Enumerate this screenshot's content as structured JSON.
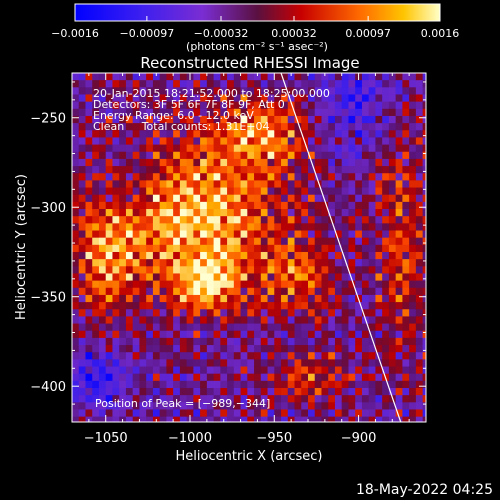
{
  "chart_data": {
    "type": "heatmap",
    "title": "Reconstructed RHESSI Image",
    "xlabel": "Heliocentric X (arcsec)",
    "ylabel": "Heliocentric Y (arcsec)",
    "xlim": [
      -1070,
      -860
    ],
    "ylim": [
      -420,
      -225
    ],
    "x_ticks": [
      "−1050",
      "−1000",
      "−950",
      "−900"
    ],
    "x_tick_values": [
      -1050,
      -1000,
      -950,
      -900
    ],
    "y_ticks": [
      "−250",
      "−300",
      "−350",
      "−400"
    ],
    "y_tick_values": [
      -250,
      -300,
      -350,
      -400
    ],
    "colorbar": {
      "unit": "(photons cm⁻² s⁻¹ asec⁻²)",
      "range": [
        -0.0016,
        0.0016
      ],
      "tick_labels": [
        "−0.0016",
        "−0.00097",
        "−0.00032",
        "0.00032",
        "0.00097",
        "0.0016"
      ],
      "tick_values": [
        -0.0016,
        -0.00097,
        -0.00032,
        0.00032,
        0.00097,
        0.0016
      ]
    },
    "annotations": [
      "20-Jan-2015 18:21:52.000 to 18:25:00.000",
      "Detectors: 3F 5F 6F 7F 8F 9F, Att 0",
      "Energy Range: 6.0 - 12.0 keV",
      "Clean     Total counts: 1.31E+04"
    ],
    "peak_label": "Position of Peak = [−989,−344]",
    "peak_position": [
      -989,
      -344
    ],
    "limb_line": [
      [
        -946,
        -225
      ],
      [
        -875,
        -420
      ]
    ],
    "blobs": [
      {
        "x": -1000,
        "y": -305,
        "sx": 55,
        "sy": 40,
        "a": 0.6
      },
      {
        "x": -990,
        "y": -343,
        "sx": 18,
        "sy": 15,
        "a": 0.55
      },
      {
        "x": -960,
        "y": -258,
        "sx": 28,
        "sy": 18,
        "a": 0.45
      },
      {
        "x": -935,
        "y": -340,
        "sx": 22,
        "sy": 20,
        "a": 0.35
      },
      {
        "x": -1050,
        "y": -330,
        "sx": 18,
        "sy": 40,
        "a": 0.35
      },
      {
        "x": -930,
        "y": -395,
        "sx": 25,
        "sy": 15,
        "a": 0.3
      },
      {
        "x": -875,
        "y": -320,
        "sx": 15,
        "sy": 60,
        "a": 0.3
      },
      {
        "x": -1055,
        "y": -395,
        "sx": 18,
        "sy": 18,
        "a": -0.35
      },
      {
        "x": -1040,
        "y": -290,
        "sx": 22,
        "sy": 22,
        "a": -0.25
      },
      {
        "x": -900,
        "y": -240,
        "sx": 20,
        "sy": 18,
        "a": -0.3
      },
      {
        "x": -905,
        "y": -270,
        "sx": 12,
        "sy": 12,
        "a": -0.2
      }
    ]
  },
  "footer": {
    "date": "18-May-2022 04:25"
  },
  "colors": {
    "background": "#000000",
    "text": "#ffffff",
    "limb_line": "#ffffff"
  }
}
